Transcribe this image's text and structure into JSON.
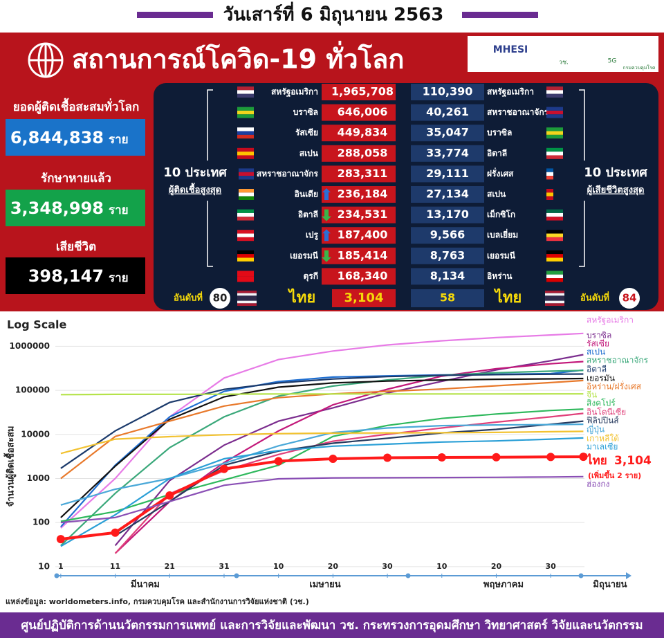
{
  "header": {
    "date": "วันเสาร์ที่ 6 มิถุนายน 2563",
    "title": "สถานการณ์โควิด-19 ทั่วโลก",
    "logos": [
      "MHESI",
      "วช.",
      "5G",
      "กรมควบคุมโรค"
    ]
  },
  "stats": [
    {
      "label": "ยอดผู้ติดเชื้อสะสมทั่วโลก",
      "value": "6,844,838",
      "unit": "ราย"
    },
    {
      "label": "รักษาหายแล้ว",
      "value": "3,348,998",
      "unit": "ราย"
    },
    {
      "label": "เสียชีวิต",
      "value": "398,147",
      "unit": "ราย"
    }
  ],
  "cases_table": {
    "heading": "10 ประเทศ",
    "subheading": "ผู้ติดเชื้อสูงสุด",
    "rows": [
      [
        "สหรัฐอเมริกา",
        "1,965,708"
      ],
      [
        "บราซิล",
        "646,006"
      ],
      [
        "รัสเซีย",
        "449,834"
      ],
      [
        "สเปน",
        "288,058"
      ],
      [
        "สหราชอาณาจักร",
        "283,311"
      ],
      [
        "อินเดีย",
        "236,184"
      ],
      [
        "อิตาลี",
        "234,531"
      ],
      [
        "เปรู",
        "187,400"
      ],
      [
        "เยอรมนี",
        "185,414"
      ],
      [
        "ตุรกี",
        "168,340"
      ]
    ],
    "thai": {
      "rank_label": "อันดับที่",
      "rank": "80",
      "name": "ไทย",
      "value": "3,104"
    }
  },
  "deaths_table": {
    "heading": "10 ประเทศ",
    "subheading": "ผู้เสียชีวิตสูงสุด",
    "rows": [
      [
        "สหรัฐอเมริกา",
        "110,390"
      ],
      [
        "สหราชอาณาจักร",
        "40,261"
      ],
      [
        "บราซิล",
        "35,047"
      ],
      [
        "อิตาลี",
        "33,774"
      ],
      [
        "ฝรั่งเศส",
        "29,111"
      ],
      [
        "สเปน",
        "27,134"
      ],
      [
        "เม็กซิโก",
        "13,170"
      ],
      [
        "เบลเยี่ยม",
        "9,566"
      ],
      [
        "เยอรมนี",
        "8,763"
      ],
      [
        "อิหร่าน",
        "8,134"
      ]
    ],
    "thai": {
      "rank_label": "อันดับที่",
      "rank": "84",
      "name": "ไทย",
      "value": "58"
    }
  },
  "chart_data": {
    "type": "line",
    "title": "Log Scale",
    "y_label": "จำนวนผู้ติดเชื้อสะสม",
    "log_y": true,
    "x": [
      1,
      11,
      21,
      31,
      41,
      51,
      61,
      71,
      81,
      91,
      97
    ],
    "xlim": [
      0,
      100
    ],
    "xticks": [
      1,
      11,
      21,
      31,
      {
        "value": 41,
        "label": "10"
      },
      {
        "value": 51,
        "label": "20"
      },
      {
        "value": 61,
        "label": "30"
      },
      {
        "value": 71,
        "label": "10"
      },
      {
        "value": 81,
        "label": "20"
      },
      {
        "value": 91,
        "label": "30"
      }
    ],
    "x_period_labels": [
      "มีนาคม",
      "เมษายน",
      "พฤษภาคม",
      "มิถุนายน"
    ],
    "ylim": [
      5,
      3000000
    ],
    "yticks": [
      10,
      100,
      1000,
      10000,
      100000,
      1000000
    ],
    "series": [
      {
        "name": "สหรัฐอเมริกา",
        "color": "#e77be6",
        "values": [
          75,
          1000,
          25000,
          190000,
          500000,
          780000,
          1070000,
          1330000,
          1570000,
          1800000,
          1960000
        ]
      },
      {
        "name": "บราซิล",
        "color": "#7b2d8e",
        "values": [
          null,
          30,
          900,
          5700,
          20000,
          40000,
          87000,
          160000,
          290000,
          470000,
          646000
        ]
      },
      {
        "name": "รัสเซีย",
        "color": "#c2187a",
        "values": [
          null,
          20,
          300,
          2300,
          12000,
          47000,
          106000,
          210000,
          310000,
          400000,
          450000
        ]
      },
      {
        "name": "สเปน",
        "color": "#1f6fd1",
        "values": [
          80,
          2000,
          25000,
          95000,
          158000,
          200000,
          213000,
          224000,
          232000,
          239000,
          288000
        ]
      },
      {
        "name": "สหราชอาณาจักร",
        "color": "#3aa87a",
        "values": [
          30,
          460,
          5000,
          25000,
          74000,
          125000,
          172000,
          220000,
          250000,
          272000,
          283000
        ]
      },
      {
        "name": "อิตาลี",
        "color": "#1b3a6b",
        "values": [
          1700,
          12000,
          53000,
          105000,
          147000,
          181000,
          205000,
          219000,
          227000,
          232000,
          234500
        ]
      },
      {
        "name": "เยอรมัน",
        "color": "#111111",
        "values": [
          130,
          1900,
          22000,
          71000,
          118000,
          147000,
          162000,
          171000,
          178000,
          182000,
          185400
        ]
      },
      {
        "name": "อิหร่าน/ฝรั่งเศส",
        "color": "#e8792b",
        "values": [
          1000,
          9000,
          20000,
          44000,
          68000,
          83000,
          95000,
          107000,
          127000,
          150000,
          167000
        ]
      },
      {
        "name": "จีน",
        "color": "#b5e34a",
        "values": [
          79800,
          80900,
          81300,
          81500,
          82900,
          82700,
          82900,
          82900,
          82900,
          83000,
          83000
        ]
      },
      {
        "name": "สิงคโปร์",
        "color": "#2eb85c",
        "values": [
          106,
          178,
          432,
          926,
          2000,
          9000,
          16000,
          23000,
          29000,
          34900,
          37500
        ]
      },
      {
        "name": "อินโดนีเซีย",
        "color": "#e0407a",
        "values": [
          null,
          20,
          450,
          1500,
          3500,
          7000,
          10100,
          14000,
          19000,
          25000,
          30000
        ]
      },
      {
        "name": "ฟิลิปปินส์",
        "color": "#263a5e",
        "values": [
          null,
          50,
          300,
          2000,
          4200,
          6300,
          8200,
          10800,
          13000,
          17000,
          20000
        ]
      },
      {
        "name": "ญี่ปุ่น",
        "color": "#4aa8d8",
        "values": [
          250,
          570,
          1000,
          2200,
          5500,
          11000,
          14000,
          15800,
          16400,
          16700,
          17000
        ]
      },
      {
        "name": "เกาหลีใต้",
        "color": "#f2c230",
        "values": [
          3700,
          7800,
          8900,
          9800,
          10400,
          10700,
          10800,
          10900,
          11100,
          11500,
          11700
        ]
      },
      {
        "name": "มาเลเซีย",
        "color": "#2a9fd6",
        "values": [
          29,
          150,
          1000,
          2800,
          4300,
          5400,
          6000,
          6700,
          7100,
          7800,
          8300
        ]
      },
      {
        "name": "ไทย",
        "color": "#ff1a1a",
        "values": [
          42,
          59,
          411,
          1650,
          2470,
          2800,
          2950,
          3010,
          3040,
          3080,
          3104
        ]
      },
      {
        "name": "ฮ่องกง",
        "color": "#8a4fb5",
        "values": [
          100,
          130,
          300,
          700,
          980,
          1030,
          1040,
          1050,
          1060,
          1080,
          1100
        ]
      }
    ],
    "annotations": [
      "(เพิ่มขึ้น 2 ราย)"
    ]
  },
  "source": "แหล่งข้อมูล: worldometers.info, กรมควบคุมโรค และสำนักงานการวิจัยแห่งชาติ (วช.)",
  "footer": "ศูนย์ปฏิบัติการด้านนวัตกรรมการแพทย์ และการวิจัยและพัฒนา วช.   กระทรวงการอุดมศึกษา วิทยาศาสตร์ วิจัยและนวัตกรรม"
}
